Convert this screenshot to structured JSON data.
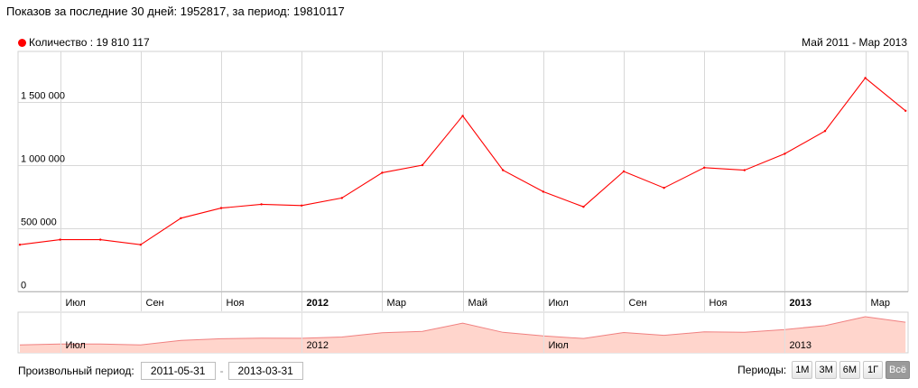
{
  "header": {
    "text": "Показов за последние 30 дней: 1952817, за период: 19810117"
  },
  "legend": {
    "label": "Количество : 19 810 117",
    "color": "#ff0000"
  },
  "range_label": "Май 2011 - Мар 2013",
  "chart_data": {
    "type": "line",
    "title": "",
    "xlabel": "",
    "ylabel": "",
    "ylim": [
      0,
      1900000
    ],
    "y_ticks": [
      {
        "value": 0,
        "label": "0"
      },
      {
        "value": 500000,
        "label": "500 000"
      },
      {
        "value": 1000000,
        "label": "1 000 000"
      },
      {
        "value": 1500000,
        "label": "1 500 000"
      }
    ],
    "x_ticks": [
      {
        "index": 1,
        "label": "Июл",
        "bold": false
      },
      {
        "index": 3,
        "label": "Сен",
        "bold": false
      },
      {
        "index": 5,
        "label": "Ноя",
        "bold": false
      },
      {
        "index": 7,
        "label": "2012",
        "bold": true
      },
      {
        "index": 9,
        "label": "Мар",
        "bold": false
      },
      {
        "index": 11,
        "label": "Май",
        "bold": false
      },
      {
        "index": 13,
        "label": "Июл",
        "bold": false
      },
      {
        "index": 15,
        "label": "Сен",
        "bold": false
      },
      {
        "index": 17,
        "label": "Ноя",
        "bold": false
      },
      {
        "index": 19,
        "label": "2013",
        "bold": true
      },
      {
        "index": 21,
        "label": "Мар",
        "bold": false
      }
    ],
    "x": [
      "2011-05",
      "2011-06",
      "2011-07",
      "2011-08",
      "2011-09",
      "2011-10",
      "2011-11",
      "2011-12",
      "2012-01",
      "2012-02",
      "2012-03",
      "2012-04",
      "2012-05",
      "2012-06",
      "2012-07",
      "2012-08",
      "2012-09",
      "2012-10",
      "2012-11",
      "2012-12",
      "2013-01",
      "2013-02",
      "2013-03"
    ],
    "series": [
      {
        "name": "Количество",
        "color": "#ff0000",
        "values": [
          370000,
          410000,
          410000,
          370000,
          580000,
          660000,
          690000,
          680000,
          740000,
          940000,
          1000000,
          1390000,
          960000,
          790000,
          670000,
          950000,
          820000,
          980000,
          960000,
          1090000,
          1270000,
          1690000,
          1430000
        ]
      }
    ],
    "navigator": {
      "labels": [
        {
          "index": 1,
          "label": "Июл"
        },
        {
          "index": 7,
          "label": "2012"
        },
        {
          "index": 13,
          "label": "Июл"
        },
        {
          "index": 19,
          "label": "2013"
        }
      ],
      "fill_color": "#ffd5cc",
      "line_color": "#f08080"
    },
    "grid": true,
    "legend_position": "top-left"
  },
  "footer": {
    "custom_period_label": "Произвольный период:",
    "date_from": "2011-05-31",
    "date_sep": "-",
    "date_to": "2013-03-31",
    "periods_label": "Периоды:",
    "period_buttons": [
      "1М",
      "3М",
      "6М",
      "1Г",
      "Всё"
    ],
    "active_period": "Всё"
  }
}
